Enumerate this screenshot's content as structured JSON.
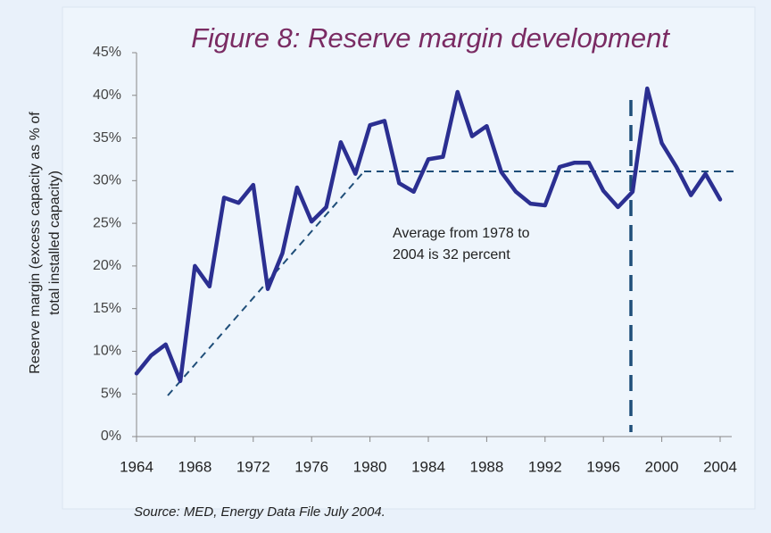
{
  "chart_data": {
    "type": "line",
    "title": "Figure 8: Reserve margin development",
    "y_label": [
      "Reserve margin (excess capacity as % of",
      "total installed capacity)"
    ],
    "annotations": [
      "Average from 1978 to",
      "2004 is 32 percent"
    ],
    "source": "Source: MED, Energy Data File July 2004.",
    "x": [
      1964,
      1965,
      1966,
      1967,
      1968,
      1969,
      1970,
      1971,
      1972,
      1973,
      1974,
      1975,
      1976,
      1977,
      1978,
      1979,
      1980,
      1981,
      1982,
      1983,
      1984,
      1985,
      1986,
      1987,
      1988,
      1989,
      1990,
      1991,
      1992,
      1993,
      1994,
      1995,
      1996,
      1997,
      1998,
      1999,
      2000,
      2001,
      2002,
      2003,
      2004
    ],
    "values": [
      7.4,
      9.5,
      10.8,
      6.5,
      20,
      17.6,
      28,
      27.4,
      29.5,
      17.3,
      21.5,
      29.2,
      25.2,
      26.9,
      34.5,
      30.8,
      36.5,
      37,
      29.7,
      28.7,
      32.5,
      32.8,
      40.4,
      35.2,
      36.4,
      31,
      28.7,
      27.3,
      27.1,
      31.6,
      32.1,
      32.1,
      28.8,
      26.9,
      28.7,
      40.8,
      34.4,
      31.6,
      28.3,
      30.8,
      27.8
    ],
    "color": "#2b2f91",
    "xlim": [
      1964,
      2004
    ],
    "xticks": [
      1964,
      1968,
      1972,
      1976,
      1980,
      1984,
      1988,
      1992,
      1996,
      2000,
      2004
    ],
    "ylim": [
      0,
      45
    ],
    "yticks": [
      {
        "value": 0,
        "label": "0%"
      },
      {
        "value": 5,
        "label": "5%"
      },
      {
        "value": 10,
        "label": "10%"
      },
      {
        "value": 15,
        "label": "15%"
      },
      {
        "value": 20,
        "label": "20%"
      },
      {
        "value": 25,
        "label": "25%"
      },
      {
        "value": 30,
        "label": "30%"
      },
      {
        "value": 35,
        "label": "35%"
      },
      {
        "value": 40,
        "label": "40%"
      },
      {
        "value": 45,
        "label": "45%"
      }
    ],
    "grid": false
  }
}
